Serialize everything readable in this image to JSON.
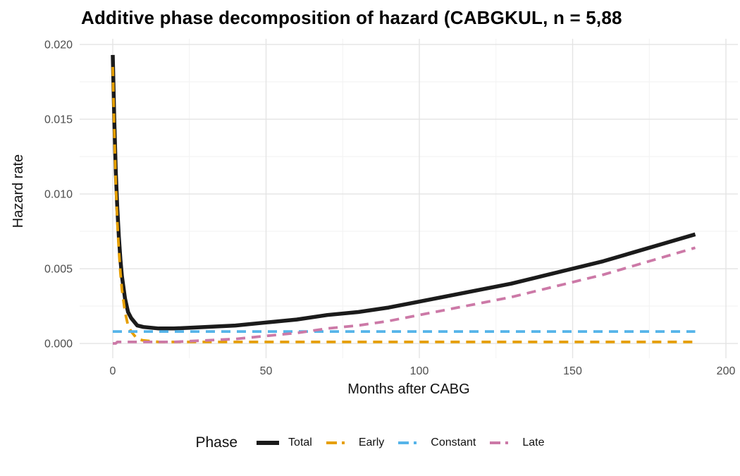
{
  "title": "Additive phase decomposition of hazard (CABGKUL, n = 5,88",
  "chart_data": {
    "type": "line",
    "title": "Additive phase decomposition of hazard (CABGKUL, n = 5,88",
    "xlabel": "Months after CABG",
    "ylabel": "Hazard rate",
    "xlim": [
      0,
      200
    ],
    "ylim": [
      0,
      0.02
    ],
    "grid": "on",
    "legend_position": "bottom",
    "x_ticks": {
      "values": [
        0,
        50,
        100,
        150,
        200
      ],
      "labels": [
        "0",
        "50",
        "100",
        "150",
        "200"
      ]
    },
    "y_ticks": {
      "values": [
        0,
        0.005,
        0.01,
        0.015,
        0.02
      ],
      "labels": [
        "0.000",
        "0.005",
        "0.010",
        "0.015",
        "0.020"
      ]
    },
    "x_minor": [
      25,
      75,
      125,
      175
    ],
    "y_minor": [
      0.0025,
      0.0075,
      0.0125,
      0.0175
    ],
    "x": [
      0,
      0.5,
      1,
      1.5,
      2,
      2.5,
      3,
      4,
      5,
      6,
      8,
      10,
      15,
      20,
      30,
      40,
      50,
      60,
      70,
      80,
      90,
      100,
      110,
      120,
      130,
      140,
      150,
      160,
      170,
      180,
      190
    ],
    "series": [
      {
        "name": "Total",
        "color": "#1B1B1B",
        "linetype": "solid",
        "width": 5.5,
        "values": [
          0.0193,
          0.0149,
          0.0115,
          0.009,
          0.0071,
          0.0056,
          0.0045,
          0.003,
          0.0021,
          0.0017,
          0.0012,
          0.0011,
          0.001,
          0.001,
          0.0011,
          0.0012,
          0.0014,
          0.0016,
          0.0019,
          0.0021,
          0.0024,
          0.0028,
          0.0032,
          0.0036,
          0.004,
          0.0045,
          0.005,
          0.0055,
          0.0061,
          0.0067,
          0.0073
        ]
      },
      {
        "name": "Early",
        "color": "#E69F00",
        "linetype": "dashed",
        "width": 3.8,
        "values": [
          0.0185,
          0.0141,
          0.0107,
          0.0081,
          0.0062,
          0.0047,
          0.0036,
          0.0021,
          0.0012,
          0.0008,
          0.0003,
          0.0002,
          0.0001,
          0.0001,
          0.0001,
          0.0001,
          0.0001,
          0.0001,
          0.0001,
          0.0001,
          0.0001,
          0.0001,
          0.0001,
          0.0001,
          0.0001,
          0.0001,
          0.0001,
          0.0001,
          0.0001,
          0.0001,
          0.0001
        ]
      },
      {
        "name": "Constant",
        "color": "#56B4E9",
        "linetype": "dashed",
        "width": 3.8,
        "values": [
          0.0008,
          0.0008,
          0.0008,
          0.0008,
          0.0008,
          0.0008,
          0.0008,
          0.0008,
          0.0008,
          0.0008,
          0.0008,
          0.0008,
          0.0008,
          0.0008,
          0.0008,
          0.0008,
          0.0008,
          0.0008,
          0.0008,
          0.0008,
          0.0008,
          0.0008,
          0.0008,
          0.0008,
          0.0008,
          0.0008,
          0.0008,
          0.0008,
          0.0008,
          0.0008,
          0.0008
        ]
      },
      {
        "name": "Late",
        "color": "#CC79A7",
        "linetype": "dashed",
        "width": 3.8,
        "values": [
          0.0,
          0.0,
          0.0,
          0.0001,
          0.0001,
          0.0001,
          0.0001,
          0.0001,
          0.0001,
          0.0001,
          0.0001,
          0.0001,
          0.0001,
          0.0001,
          0.0002,
          0.0003,
          0.0005,
          0.0007,
          0.001,
          0.0012,
          0.0015,
          0.0019,
          0.0023,
          0.0027,
          0.0031,
          0.0036,
          0.0041,
          0.0046,
          0.0052,
          0.0058,
          0.0064
        ]
      }
    ]
  },
  "colors": {
    "total": "#1B1B1B",
    "early": "#E69F00",
    "constant": "#56B4E9",
    "late": "#CC79A7",
    "grid_major": "#E4E4E4",
    "grid_minor": "#F2F2F2",
    "tick_text": "#4D4D4D"
  },
  "legend": {
    "title": "Phase",
    "items": [
      {
        "label": "Total",
        "color": "#1B1B1B",
        "style": "solid"
      },
      {
        "label": "Early",
        "color": "#E69F00",
        "style": "dashed"
      },
      {
        "label": "Constant",
        "color": "#56B4E9",
        "style": "dashed"
      },
      {
        "label": "Late",
        "color": "#CC79A7",
        "style": "dashed"
      }
    ]
  }
}
